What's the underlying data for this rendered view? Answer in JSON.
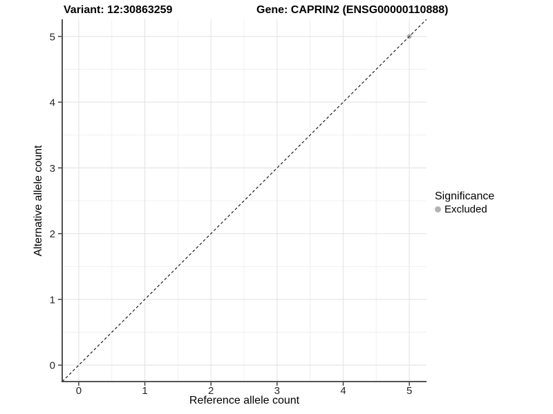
{
  "titles": {
    "variant": "Variant: 12:30863259",
    "gene": "Gene: CAPRIN2 (ENSG00000110888)"
  },
  "axes": {
    "x_label": "Reference allele count",
    "y_label": "Alternative allele count"
  },
  "legend": {
    "title": "Significance",
    "items": [
      {
        "label": "Excluded",
        "color": "#b3b3b3"
      }
    ]
  },
  "chart_data": {
    "type": "scatter",
    "title": "Variant: 12:30863259 | Gene: CAPRIN2 (ENSG00000110888)",
    "xlabel": "Reference allele count",
    "ylabel": "Alternative allele count",
    "xlim": [
      -0.25,
      5.26
    ],
    "ylim": [
      -0.25,
      5.26
    ],
    "x_ticks": [
      0,
      1,
      2,
      3,
      4,
      5
    ],
    "y_ticks": [
      0,
      1,
      2,
      3,
      4,
      5
    ],
    "grid": "major+minor",
    "legend_position": "right",
    "series": [
      {
        "name": "Excluded",
        "color": "#b3b3b3",
        "points": [
          [
            5,
            5
          ]
        ]
      }
    ],
    "reference_line": {
      "type": "identity",
      "slope": 1,
      "intercept": 0,
      "style": "dashed",
      "color": "#1a1a1a"
    }
  },
  "colors": {
    "grid_major": "#e3e3e3",
    "grid_minor": "#f0f0f0",
    "axis_line": "#3c3c3c",
    "tick_mark": "#333333",
    "background": "#ffffff"
  }
}
